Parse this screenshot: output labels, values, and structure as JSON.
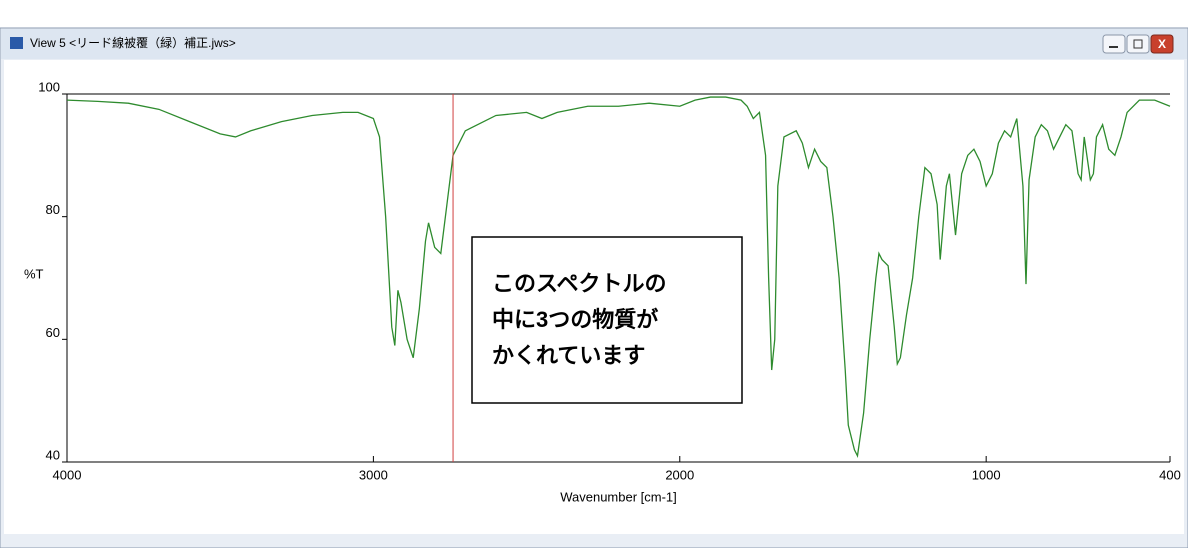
{
  "window": {
    "title": "View 5 <リード線被覆（緑）補正.jws>"
  },
  "chart_data": {
    "type": "line",
    "xlabel": "Wavenumber [cm-1]",
    "ylabel": "%T",
    "xlim": [
      4000,
      400
    ],
    "ylim": [
      40,
      100
    ],
    "xticks": [
      4000,
      3000,
      2000,
      1000,
      400
    ],
    "yticks": [
      40,
      60,
      80,
      100
    ],
    "cursor": 2740,
    "cursor_color": "#d04040",
    "annotation": [
      "このスペクトルの",
      "中に3つの物質が",
      "かくれています"
    ],
    "series": [
      {
        "color": "#2e8b2e",
        "x": [
          4000,
          3900,
          3800,
          3700,
          3600,
          3500,
          3450,
          3400,
          3300,
          3200,
          3100,
          3050,
          3000,
          2980,
          2960,
          2940,
          2930,
          2920,
          2910,
          2890,
          2870,
          2850,
          2830,
          2820,
          2800,
          2780,
          2760,
          2740,
          2700,
          2600,
          2500,
          2450,
          2400,
          2300,
          2200,
          2100,
          2000,
          1950,
          1900,
          1850,
          1800,
          1780,
          1760,
          1740,
          1720,
          1710,
          1700,
          1690,
          1680,
          1660,
          1620,
          1600,
          1580,
          1560,
          1540,
          1520,
          1500,
          1480,
          1460,
          1450,
          1430,
          1420,
          1400,
          1380,
          1360,
          1350,
          1340,
          1320,
          1300,
          1290,
          1280,
          1260,
          1240,
          1220,
          1200,
          1180,
          1160,
          1150,
          1130,
          1120,
          1110,
          1100,
          1080,
          1060,
          1040,
          1020,
          1000,
          980,
          960,
          940,
          920,
          900,
          880,
          870,
          860,
          840,
          820,
          800,
          780,
          760,
          740,
          720,
          700,
          690,
          680,
          660,
          650,
          640,
          620,
          600,
          580,
          560,
          540,
          500,
          450,
          400
        ],
        "values": [
          99,
          98.8,
          98.5,
          97.5,
          95.5,
          93.5,
          93,
          94,
          95.5,
          96.5,
          97,
          97,
          96,
          93,
          80,
          62,
          59,
          68,
          66,
          60,
          57,
          65,
          76,
          79,
          75,
          74,
          82,
          90,
          94,
          96.5,
          97,
          96,
          97,
          98,
          98,
          98.5,
          98,
          99,
          99.5,
          99.5,
          99,
          98,
          96,
          97,
          90,
          70,
          55,
          60,
          85,
          93,
          94,
          92,
          88,
          91,
          89,
          88,
          80,
          70,
          55,
          46,
          42,
          41,
          48,
          60,
          70,
          74,
          73,
          72,
          62,
          56,
          57,
          64,
          70,
          80,
          88,
          87,
          82,
          73,
          85,
          87,
          82,
          77,
          87,
          90,
          91,
          89,
          85,
          87,
          92,
          94,
          93,
          96,
          85,
          69,
          86,
          93,
          95,
          94,
          91,
          93,
          95,
          94,
          87,
          86,
          93,
          86,
          87,
          93,
          95,
          91,
          90,
          93,
          97,
          99,
          99,
          98
        ]
      }
    ]
  }
}
